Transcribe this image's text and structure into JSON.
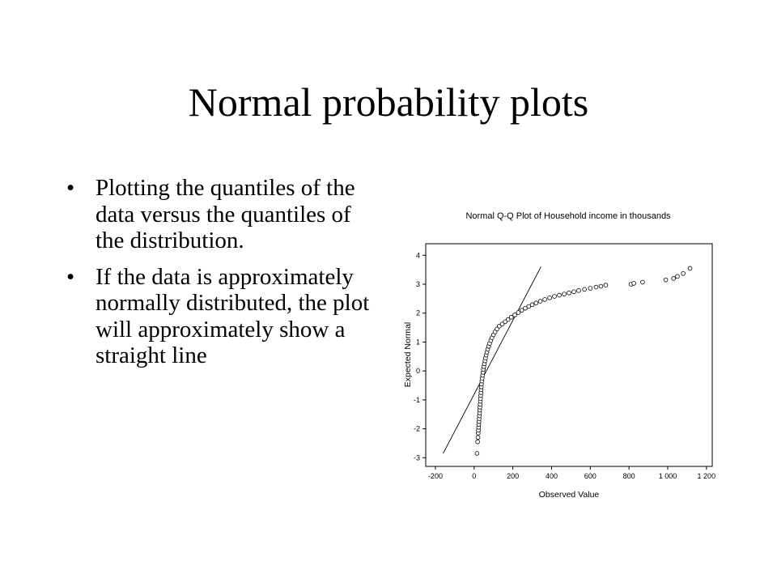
{
  "slide": {
    "title": "Normal probability plots",
    "bullets": [
      "Plotting the quantiles of the data versus the quantiles of the distribution.",
      "If the data is approximately normally distributed, the plot will approximately show a straight line"
    ],
    "bullet_glyph": "•"
  },
  "chart_data": {
    "type": "scatter",
    "title": "Normal Q-Q Plot of Household income in thousands",
    "xlabel": "Observed Value",
    "ylabel": "Expected Normal",
    "xlim": [
      -250,
      1230
    ],
    "ylim": [
      -3.3,
      4.4
    ],
    "x_ticks": [
      -200,
      0,
      200,
      400,
      600,
      800,
      1000,
      1200
    ],
    "x_tick_labels": [
      "-200",
      "0",
      "200",
      "400",
      "600",
      "800",
      "1 000",
      "1 200"
    ],
    "y_ticks": [
      -3,
      -2,
      -1,
      0,
      1,
      2,
      3,
      4
    ],
    "y_tick_labels": [
      "-3",
      "-2",
      "-1",
      "0",
      "1",
      "2",
      "3",
      "4"
    ],
    "marker": "circle-open",
    "reference_line": {
      "x": [
        -160,
        345
      ],
      "y": [
        -2.85,
        3.6
      ]
    },
    "series": [
      {
        "points": [
          [
            15,
            -2.85
          ],
          [
            18,
            -2.45
          ],
          [
            20,
            -2.3
          ],
          [
            21,
            -2.15
          ],
          [
            22,
            -2.05
          ],
          [
            23,
            -1.95
          ],
          [
            24,
            -1.85
          ],
          [
            25,
            -1.75
          ],
          [
            26,
            -1.65
          ],
          [
            27,
            -1.55
          ],
          [
            28,
            -1.45
          ],
          [
            29,
            -1.35
          ],
          [
            30,
            -1.25
          ],
          [
            31,
            -1.15
          ],
          [
            32,
            -1.05
          ],
          [
            33,
            -0.95
          ],
          [
            34,
            -0.85
          ],
          [
            35,
            -0.75
          ],
          [
            36,
            -0.65
          ],
          [
            37,
            -0.55
          ],
          [
            38,
            -0.45
          ],
          [
            40,
            -0.35
          ],
          [
            42,
            -0.25
          ],
          [
            44,
            -0.15
          ],
          [
            46,
            -0.05
          ],
          [
            48,
            0.05
          ],
          [
            50,
            0.15
          ],
          [
            53,
            0.25
          ],
          [
            56,
            0.35
          ],
          [
            59,
            0.45
          ],
          [
            62,
            0.55
          ],
          [
            66,
            0.65
          ],
          [
            70,
            0.75
          ],
          [
            75,
            0.85
          ],
          [
            80,
            0.95
          ],
          [
            86,
            1.05
          ],
          [
            92,
            1.15
          ],
          [
            100,
            1.25
          ],
          [
            108,
            1.35
          ],
          [
            118,
            1.45
          ],
          [
            130,
            1.55
          ],
          [
            145,
            1.62
          ],
          [
            160,
            1.7
          ],
          [
            175,
            1.78
          ],
          [
            192,
            1.86
          ],
          [
            210,
            1.94
          ],
          [
            228,
            2.02
          ],
          [
            246,
            2.1
          ],
          [
            264,
            2.17
          ],
          [
            282,
            2.23
          ],
          [
            300,
            2.29
          ],
          [
            320,
            2.35
          ],
          [
            342,
            2.41
          ],
          [
            365,
            2.47
          ],
          [
            390,
            2.53
          ],
          [
            415,
            2.58
          ],
          [
            440,
            2.62
          ],
          [
            465,
            2.66
          ],
          [
            490,
            2.7
          ],
          [
            515,
            2.74
          ],
          [
            540,
            2.78
          ],
          [
            570,
            2.82
          ],
          [
            600,
            2.86
          ],
          [
            630,
            2.9
          ],
          [
            655,
            2.93
          ],
          [
            680,
            2.97
          ],
          [
            810,
            3.0
          ],
          [
            825,
            3.03
          ],
          [
            870,
            3.07
          ],
          [
            990,
            3.15
          ],
          [
            1030,
            3.2
          ],
          [
            1050,
            3.27
          ],
          [
            1080,
            3.37
          ],
          [
            1115,
            3.55
          ]
        ]
      }
    ]
  }
}
